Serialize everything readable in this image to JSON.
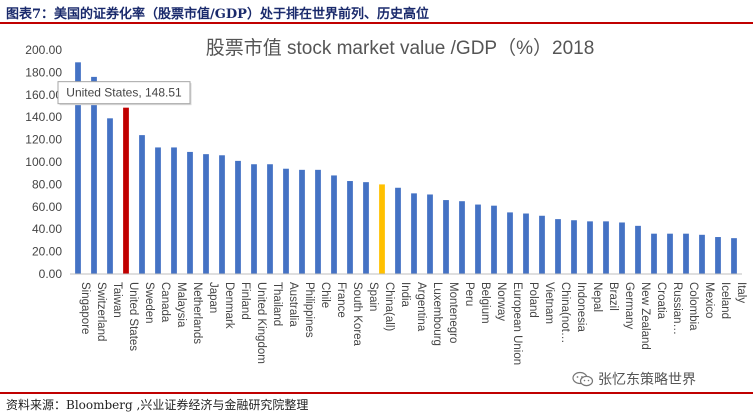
{
  "header": {
    "caption": "图表7：美国的证券化率（股票市值/GDP）处于排在世界前列、历史高位"
  },
  "footer": {
    "source": "资料来源：Bloomberg ,兴业证券经济与金融研究院整理"
  },
  "watermark": {
    "text": "张忆东策略世界",
    "icon": "wechat-icon"
  },
  "colors": {
    "bar": "#4472c4",
    "highlight_us": "#c00000",
    "highlight_china": "#ffc000"
  },
  "chart_data": {
    "type": "bar",
    "title": "股票市值 stock market value /GDP（%）2018",
    "xlabel": "",
    "ylabel": "",
    "ylim": [
      0,
      200
    ],
    "yticks": [
      "0.00",
      "20.00",
      "40.00",
      "60.00",
      "80.00",
      "100.00",
      "120.00",
      "140.00",
      "160.00",
      "180.00",
      "200.00"
    ],
    "categories": [
      "Singapore",
      "Switzerland",
      "Taiwan",
      "United States",
      "Sweden",
      "Canada",
      "Malaysia",
      "Netherlands",
      "Japan",
      "Denmark",
      "Finland",
      "United Kingdom",
      "Thailand",
      "Australia",
      "Philippines",
      "Chile",
      "France",
      "South Korea",
      "Spain",
      "China(all)",
      "India",
      "Argentina",
      "Luxembourg",
      "Montenegro",
      "Peru",
      "Belgium",
      "Norway",
      "European Union",
      "Poland",
      "Vietnam",
      "China(not…",
      "Indonesia",
      "Nepal",
      "Brazil",
      "Germany",
      "New Zealand",
      "Croatia",
      "Russian…",
      "Colombia",
      "Mexico",
      "Iceland",
      "Italy"
    ],
    "values": [
      189,
      176,
      139,
      148.51,
      124,
      113,
      113,
      109,
      107,
      106,
      101,
      98,
      98,
      94,
      93,
      93,
      88,
      83,
      82,
      80,
      77,
      72,
      71,
      66,
      65,
      62,
      61,
      55,
      54,
      52,
      49,
      48,
      47,
      47,
      46,
      43,
      36,
      36,
      36,
      35,
      33,
      32
    ],
    "highlight": {
      "United States": "#c00000",
      "China(all)": "#ffc000"
    },
    "tooltip": {
      "category": "United States",
      "label": "United States, 148.51"
    },
    "grid": false,
    "legend": "none"
  }
}
